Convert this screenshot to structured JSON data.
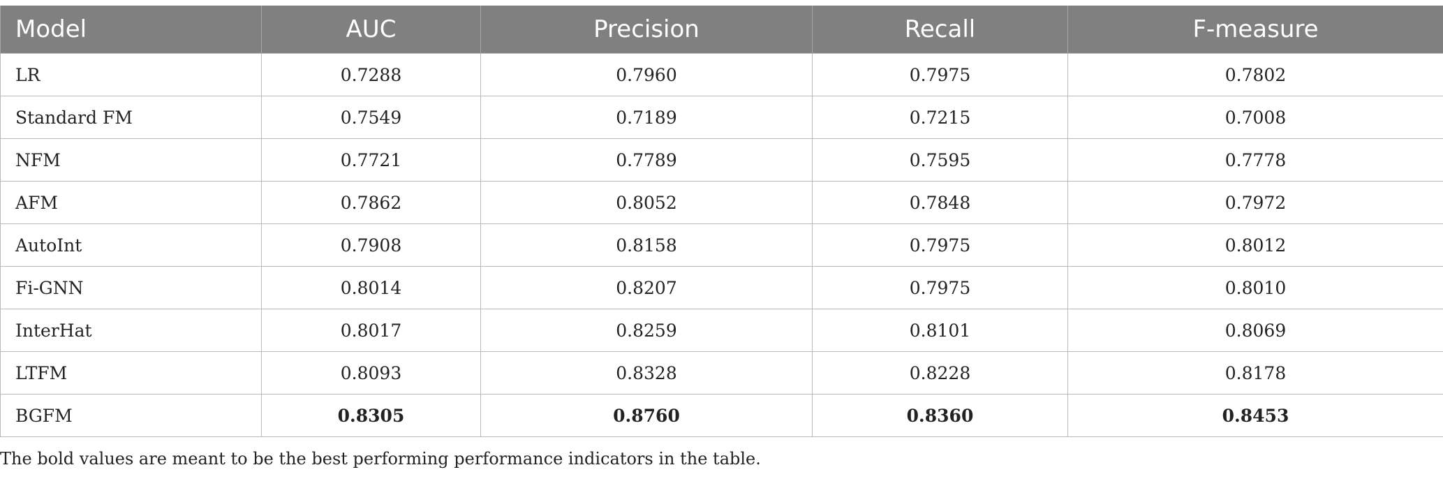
{
  "table": {
    "headers": [
      "Model",
      "AUC",
      "Precision",
      "Recall",
      "F-measure"
    ],
    "rows": [
      {
        "model": "LR",
        "auc": "0.7288",
        "precision": "0.7960",
        "recall": "0.7975",
        "f_measure": "0.7802"
      },
      {
        "model": "Standard FM",
        "auc": "0.7549",
        "precision": "0.7189",
        "recall": "0.7215",
        "f_measure": "0.7008"
      },
      {
        "model": "NFM",
        "auc": "0.7721",
        "precision": "0.7789",
        "recall": "0.7595",
        "f_measure": "0.7778"
      },
      {
        "model": "AFM",
        "auc": "0.7862",
        "precision": "0.8052",
        "recall": "0.7848",
        "f_measure": "0.7972"
      },
      {
        "model": "AutoInt",
        "auc": "0.7908",
        "precision": "0.8158",
        "recall": "0.7975",
        "f_measure": "0.8012"
      },
      {
        "model": "Fi-GNN",
        "auc": "0.8014",
        "precision": "0.8207",
        "recall": "0.7975",
        "f_measure": "0.8010"
      },
      {
        "model": "InterHat",
        "auc": "0.8017",
        "precision": "0.8259",
        "recall": "0.8101",
        "f_measure": "0.8069"
      },
      {
        "model": "LTFM",
        "auc": "0.8093",
        "precision": "0.8328",
        "recall": "0.8228",
        "f_measure": "0.8178"
      },
      {
        "model": "BGFM",
        "auc": "0.8305",
        "precision": "0.8760",
        "recall": "0.8360",
        "f_measure": "0.8453"
      }
    ]
  },
  "footnote": "The bold values are meant to be the best performing performance indicators in the table.",
  "colors": {
    "header_bg": "#808080",
    "header_text": "#ffffff",
    "grid": "#b8b8b8"
  }
}
